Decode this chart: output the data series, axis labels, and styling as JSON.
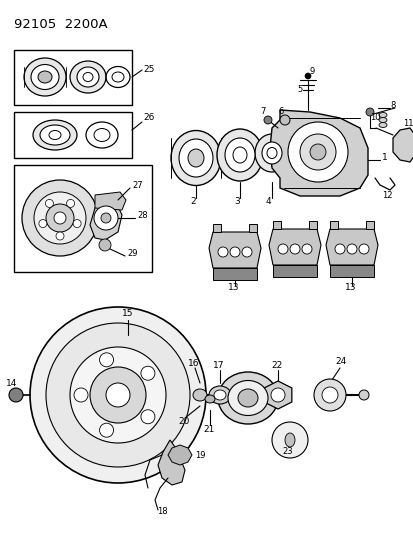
{
  "title": "92105  2200A",
  "bg_color": "#ffffff",
  "line_color": "#000000",
  "fig_width": 4.14,
  "fig_height": 5.33,
  "dpi": 100
}
